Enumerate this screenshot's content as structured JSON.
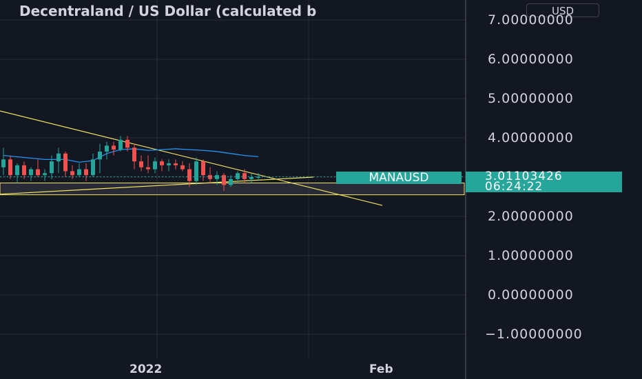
{
  "header": {
    "title": "Decentraland / US Dollar (calculated b",
    "unit": "USD"
  },
  "badges": {
    "symbol": "MANAUSD",
    "price": "3.01103426",
    "countdown": "06:24:22"
  },
  "colors": {
    "background": "#131722",
    "up": "#26a69a",
    "down": "#ef5350",
    "ma": "#2196f3",
    "trendline": "#f5e663",
    "zone": "#3a3d45"
  },
  "chart_data": {
    "type": "candlestick",
    "title": "Decentraland / US Dollar (calculated b",
    "quote_currency": "USD",
    "symbol": "MANAUSD",
    "last_price": 3.01103426,
    "countdown": "06:24:22",
    "y_ticks": [
      "7.00000000",
      "6.00000000",
      "5.00000000",
      "4.00000000",
      "3.00000000",
      "2.00000000",
      "1.00000000",
      "0.00000000",
      "−1.00000000"
    ],
    "ylim": [
      -1.5,
      7.2
    ],
    "x_ticks": [
      "2022",
      "Feb"
    ],
    "x_tick_days": [
      16,
      38
    ],
    "candles": [
      {
        "d": 0,
        "o": 3.25,
        "h": 3.75,
        "l": 3.05,
        "c": 3.45
      },
      {
        "d": 1,
        "o": 3.45,
        "h": 3.55,
        "l": 2.95,
        "c": 3.05
      },
      {
        "d": 2,
        "o": 3.05,
        "h": 3.35,
        "l": 2.85,
        "c": 3.3
      },
      {
        "d": 3,
        "o": 3.3,
        "h": 3.4,
        "l": 2.95,
        "c": 3.05
      },
      {
        "d": 4,
        "o": 3.05,
        "h": 3.25,
        "l": 2.9,
        "c": 3.2
      },
      {
        "d": 5,
        "o": 3.2,
        "h": 3.45,
        "l": 3.0,
        "c": 3.05
      },
      {
        "d": 6,
        "o": 3.05,
        "h": 3.2,
        "l": 2.9,
        "c": 3.1
      },
      {
        "d": 7,
        "o": 3.1,
        "h": 3.55,
        "l": 2.95,
        "c": 3.4
      },
      {
        "d": 8,
        "o": 3.4,
        "h": 3.75,
        "l": 3.1,
        "c": 3.6
      },
      {
        "d": 9,
        "o": 3.6,
        "h": 3.65,
        "l": 3.0,
        "c": 3.15
      },
      {
        "d": 10,
        "o": 3.15,
        "h": 3.3,
        "l": 2.95,
        "c": 3.05
      },
      {
        "d": 11,
        "o": 3.05,
        "h": 3.35,
        "l": 3.0,
        "c": 3.2
      },
      {
        "d": 12,
        "o": 3.2,
        "h": 3.35,
        "l": 2.9,
        "c": 3.05
      },
      {
        "d": 13,
        "o": 3.05,
        "h": 3.6,
        "l": 3.0,
        "c": 3.45
      },
      {
        "d": 14,
        "o": 3.45,
        "h": 3.85,
        "l": 3.1,
        "c": 3.65
      },
      {
        "d": 15,
        "o": 3.65,
        "h": 3.9,
        "l": 3.45,
        "c": 3.8
      },
      {
        "d": 16,
        "o": 3.8,
        "h": 3.9,
        "l": 3.55,
        "c": 3.7
      },
      {
        "d": 17,
        "o": 3.7,
        "h": 4.05,
        "l": 3.65,
        "c": 3.95
      },
      {
        "d": 18,
        "o": 3.95,
        "h": 4.05,
        "l": 3.65,
        "c": 3.75
      },
      {
        "d": 19,
        "o": 3.75,
        "h": 3.85,
        "l": 3.2,
        "c": 3.4
      },
      {
        "d": 20,
        "o": 3.4,
        "h": 3.55,
        "l": 3.15,
        "c": 3.25
      },
      {
        "d": 21,
        "o": 3.25,
        "h": 3.55,
        "l": 3.1,
        "c": 3.2
      },
      {
        "d": 22,
        "o": 3.2,
        "h": 3.5,
        "l": 3.1,
        "c": 3.4
      },
      {
        "d": 23,
        "o": 3.4,
        "h": 3.45,
        "l": 3.15,
        "c": 3.3
      },
      {
        "d": 24,
        "o": 3.3,
        "h": 3.45,
        "l": 3.15,
        "c": 3.35
      },
      {
        "d": 25,
        "o": 3.35,
        "h": 3.45,
        "l": 3.2,
        "c": 3.3
      },
      {
        "d": 26,
        "o": 3.3,
        "h": 3.4,
        "l": 3.15,
        "c": 3.2
      },
      {
        "d": 27,
        "o": 3.2,
        "h": 3.35,
        "l": 2.75,
        "c": 2.9
      },
      {
        "d": 28,
        "o": 2.9,
        "h": 3.5,
        "l": 2.8,
        "c": 3.4
      },
      {
        "d": 29,
        "o": 3.4,
        "h": 3.45,
        "l": 2.9,
        "c": 3.05
      },
      {
        "d": 30,
        "o": 3.05,
        "h": 3.25,
        "l": 2.85,
        "c": 2.95
      },
      {
        "d": 31,
        "o": 2.95,
        "h": 3.15,
        "l": 2.8,
        "c": 3.05
      },
      {
        "d": 32,
        "o": 3.05,
        "h": 3.1,
        "l": 2.65,
        "c": 2.8
      },
      {
        "d": 33,
        "o": 2.8,
        "h": 3.05,
        "l": 2.75,
        "c": 2.95
      },
      {
        "d": 34,
        "o": 2.95,
        "h": 3.15,
        "l": 2.85,
        "c": 3.1
      },
      {
        "d": 35,
        "o": 3.1,
        "h": 3.2,
        "l": 2.85,
        "c": 2.95
      },
      {
        "d": 36,
        "o": 2.95,
        "h": 3.1,
        "l": 2.85,
        "c": 3.0
      },
      {
        "d": 37,
        "o": 3.0,
        "h": 3.1,
        "l": 2.9,
        "c": 3.01
      }
    ],
    "moving_average": [
      {
        "d": 0,
        "v": 3.55
      },
      {
        "d": 3,
        "v": 3.5
      },
      {
        "d": 6,
        "v": 3.45
      },
      {
        "d": 9,
        "v": 3.45
      },
      {
        "d": 11,
        "v": 3.38
      },
      {
        "d": 13,
        "v": 3.42
      },
      {
        "d": 15,
        "v": 3.6
      },
      {
        "d": 17,
        "v": 3.7
      },
      {
        "d": 19,
        "v": 3.72
      },
      {
        "d": 21,
        "v": 3.68
      },
      {
        "d": 23,
        "v": 3.7
      },
      {
        "d": 25,
        "v": 3.72
      },
      {
        "d": 27,
        "v": 3.7
      },
      {
        "d": 29,
        "v": 3.68
      },
      {
        "d": 31,
        "v": 3.65
      },
      {
        "d": 33,
        "v": 3.6
      },
      {
        "d": 35,
        "v": 3.55
      },
      {
        "d": 37,
        "v": 3.52
      }
    ],
    "trendlines": [
      {
        "d1": -2,
        "v1": 4.75,
        "d2": 55,
        "v2": 2.28
      },
      {
        "d1": -2,
        "v1": 2.55,
        "d2": 45,
        "v2": 3.0
      }
    ],
    "zone": {
      "from": 2.55,
      "to": 2.85
    }
  }
}
